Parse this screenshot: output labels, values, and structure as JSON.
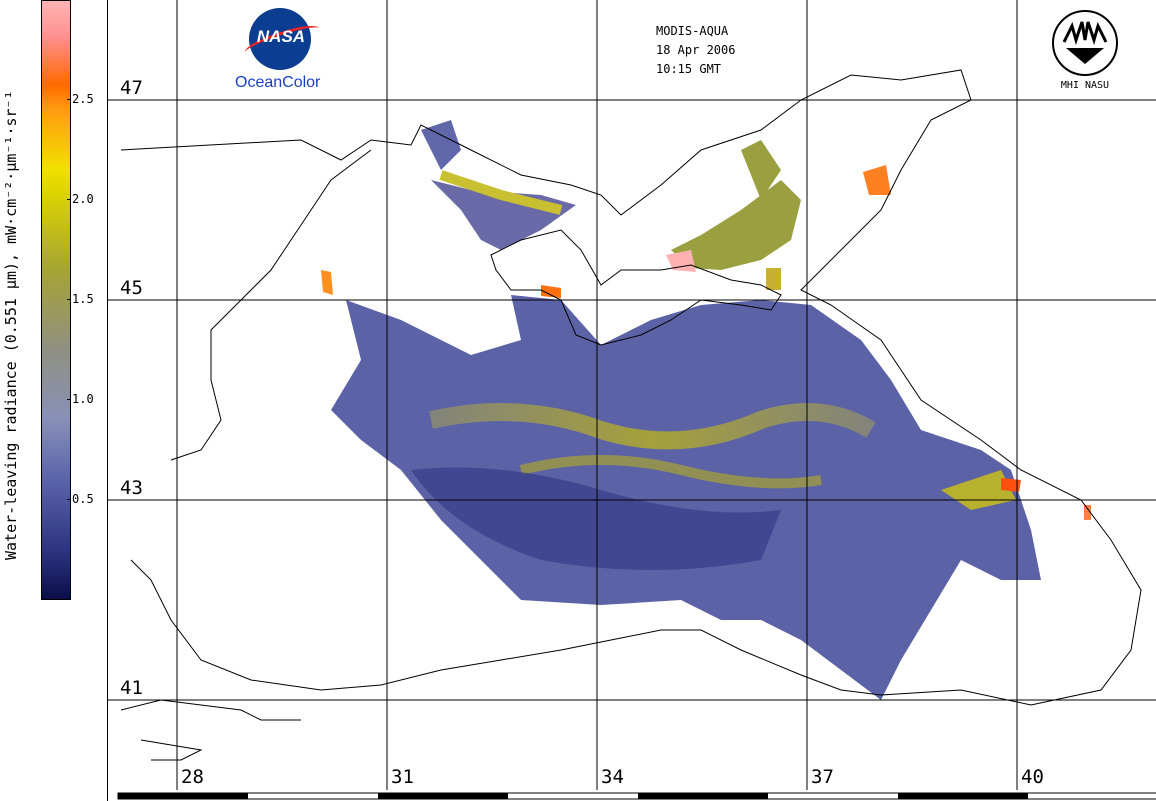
{
  "colorbar": {
    "title": "Water-leaving radiance (0.551 µm), mW·cm⁻²·µm⁻¹·sr⁻¹",
    "ticks": [
      "2.5",
      "2.0",
      "1.5",
      "1.0",
      "0.5"
    ]
  },
  "header": {
    "sensor": "MODIS-AQUA",
    "date": "18 Apr 2006",
    "time": "10:15 GMT"
  },
  "logos": {
    "nasa_word": "NASA",
    "oceancolor": "OceanColor",
    "mhi": "MHI NASU"
  },
  "grid": {
    "latitudes": [
      "47",
      "45",
      "43",
      "41"
    ],
    "longitudes": [
      "28",
      "31",
      "34",
      "37",
      "40"
    ]
  },
  "colors": {
    "low": "#0a0f4a",
    "mid_blue": "#5a64aa",
    "yellow": "#d4cc10",
    "orange": "#ff6a00",
    "pink": "#ffb4b4"
  }
}
